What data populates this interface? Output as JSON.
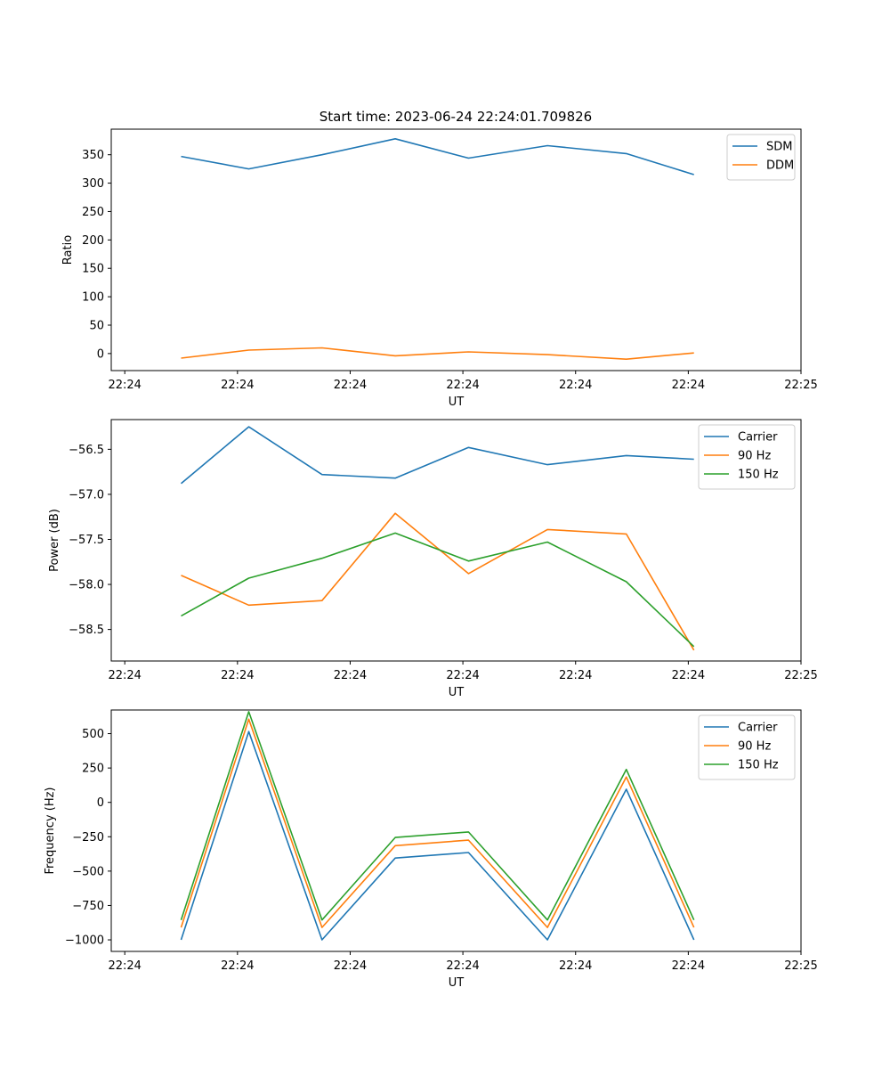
{
  "figure": {
    "title": "Start time: 2023-06-24 22:24:01.709826"
  },
  "colors": {
    "blue": "#1f77b4",
    "orange": "#ff7f0e",
    "green": "#2ca02c"
  },
  "chart_data": [
    {
      "type": "line",
      "title": "Start time: 2023-06-24 22:24:01.709826",
      "xlabel": "UT",
      "ylabel": "Ratio",
      "x_tick_labels": [
        "22:24",
        "22:24",
        "22:24",
        "22:24",
        "22:24",
        "22:24",
        "22:25"
      ],
      "x_tick_positions": [
        0,
        1,
        2,
        3,
        4,
        5,
        6
      ],
      "x_points": [
        0.5,
        1.1,
        1.75,
        2.4,
        3.05,
        3.75,
        4.45,
        5.05
      ],
      "xlim": [
        -0.12,
        6.0
      ],
      "ylim": [
        -30,
        395
      ],
      "yticks": [
        0,
        50,
        100,
        150,
        200,
        250,
        300,
        350
      ],
      "legend": "top-right",
      "series": [
        {
          "name": "SDM",
          "color": "#1f77b4",
          "values": [
            347,
            325,
            350,
            378,
            344,
            366,
            352,
            315
          ]
        },
        {
          "name": "DDM",
          "color": "#ff7f0e",
          "values": [
            -8,
            6,
            10,
            -4,
            3,
            -2,
            -10,
            1
          ]
        }
      ]
    },
    {
      "type": "line",
      "title": "",
      "xlabel": "UT",
      "ylabel": "Power (dB)",
      "x_tick_labels": [
        "22:24",
        "22:24",
        "22:24",
        "22:24",
        "22:24",
        "22:24",
        "22:25"
      ],
      "x_tick_positions": [
        0,
        1,
        2,
        3,
        4,
        5,
        6
      ],
      "x_points": [
        0.5,
        1.1,
        1.75,
        2.4,
        3.05,
        3.75,
        4.45,
        5.05
      ],
      "xlim": [
        -0.12,
        6.0
      ],
      "ylim": [
        -58.85,
        -56.17
      ],
      "yticks": [
        -58.5,
        -58.0,
        -57.5,
        -57.0,
        -56.5
      ],
      "ytick_labels": [
        "−58.5",
        "−58.0",
        "−57.5",
        "−57.0",
        "−56.5"
      ],
      "legend": "top-right",
      "series": [
        {
          "name": "Carrier",
          "color": "#1f77b4",
          "values": [
            -56.88,
            -56.25,
            -56.78,
            -56.82,
            -56.48,
            -56.67,
            -56.57,
            -56.61
          ]
        },
        {
          "name": "90 Hz",
          "color": "#ff7f0e",
          "values": [
            -57.9,
            -58.23,
            -58.18,
            -57.21,
            -57.88,
            -57.39,
            -57.44,
            -58.73
          ]
        },
        {
          "name": "150 Hz",
          "color": "#2ca02c",
          "values": [
            -58.35,
            -57.93,
            -57.71,
            -57.43,
            -57.74,
            -57.53,
            -57.97,
            -58.69
          ]
        }
      ]
    },
    {
      "type": "line",
      "title": "",
      "xlabel": "UT",
      "ylabel": "Frequency (Hz)",
      "x_tick_labels": [
        "22:24",
        "22:24",
        "22:24",
        "22:24",
        "22:24",
        "22:24",
        "22:25"
      ],
      "x_tick_positions": [
        0,
        1,
        2,
        3,
        4,
        5,
        6
      ],
      "x_points": [
        0.5,
        1.1,
        1.75,
        2.4,
        3.05,
        3.75,
        4.45,
        5.05
      ],
      "xlim": [
        -0.12,
        6.0
      ],
      "ylim": [
        -1084,
        672
      ],
      "yticks": [
        -1000,
        -750,
        -500,
        -250,
        0,
        250,
        500
      ],
      "ytick_labels": [
        "−1000",
        "−750",
        "−500",
        "−250",
        "0",
        "250",
        "500"
      ],
      "legend": "top-right",
      "series": [
        {
          "name": "Carrier",
          "color": "#1f77b4",
          "values": [
            -1000,
            515,
            -1000,
            -405,
            -365,
            -1000,
            95,
            -1000
          ]
        },
        {
          "name": "90 Hz",
          "color": "#ff7f0e",
          "values": [
            -910,
            605,
            -910,
            -315,
            -275,
            -910,
            185,
            -910
          ]
        },
        {
          "name": "150 Hz",
          "color": "#2ca02c",
          "values": [
            -855,
            660,
            -855,
            -255,
            -215,
            -855,
            240,
            -855
          ]
        }
      ]
    }
  ]
}
